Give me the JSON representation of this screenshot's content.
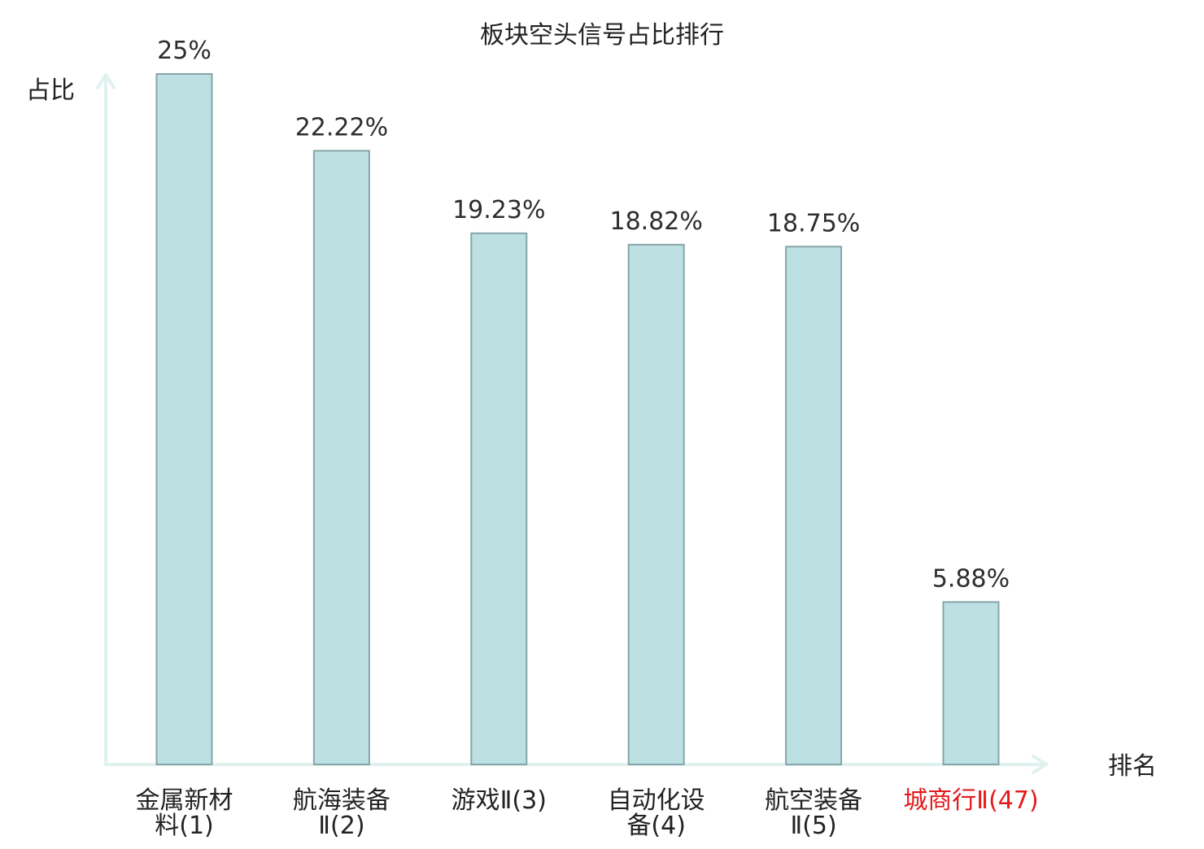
{
  "chart_data": {
    "type": "bar",
    "title": "板块空头信号占比排行",
    "ylabel": "占比",
    "xlabel": "排名",
    "ylim": [
      0,
      25
    ],
    "grid": false,
    "categories": [
      [
        "金属新材",
        "料(1)"
      ],
      [
        "航海装备",
        "Ⅱ(2)"
      ],
      [
        "游戏Ⅱ(3)"
      ],
      [
        "自动化设",
        "备(4)"
      ],
      [
        "航空装备",
        "Ⅱ(5)"
      ],
      [
        "城商行Ⅱ(47)"
      ]
    ],
    "values": [
      25,
      22.22,
      19.23,
      18.82,
      18.75,
      5.88
    ],
    "value_labels": [
      "25%",
      "22.22%",
      "19.23%",
      "18.82%",
      "18.75%",
      "5.88%"
    ],
    "highlight_index": 5
  },
  "colors": {
    "bar_fill": "#bde0e3",
    "bar_stroke": "#86a5a8",
    "axis": "#dff2ef",
    "label_default": "#222222",
    "label_highlight": "#e41a1c"
  }
}
